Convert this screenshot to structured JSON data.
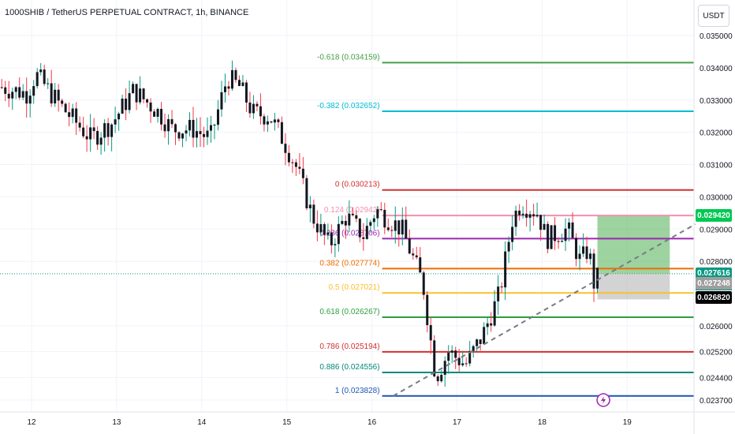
{
  "header": {
    "title": "1000SHIB / TetherUS PERPETUAL CONTRACT, 1h, BINANCE",
    "currency": "USDT"
  },
  "colors": {
    "up": "#089981",
    "down": "#f23645",
    "candle_body": "#131722",
    "grid": "#f0f3fa",
    "long_target": "#4caf50",
    "long_stop": "#9e9e9e"
  },
  "chart_data": {
    "type": "candlestick",
    "symbol": "1000SHIB / TetherUS PERPETUAL CONTRACT",
    "interval": "1h",
    "exchange": "BINANCE",
    "y_ticks": [
      "0.035000",
      "0.034000",
      "0.033000",
      "0.032000",
      "0.031000",
      "0.030000",
      "0.029000",
      "0.028000",
      "0.026000",
      "0.025200",
      "0.024400",
      "0.023700"
    ],
    "x_ticks": [
      "12",
      "13",
      "14",
      "15",
      "16",
      "17",
      "18",
      "19"
    ],
    "ylim": [
      0.0232,
      0.0355
    ],
    "fibonacci": [
      {
        "label": "-0.618 (0.034159)",
        "level": -0.618,
        "price": 0.034159,
        "color": "#43a047"
      },
      {
        "label": "-0.382 (0.032652)",
        "level": -0.382,
        "price": 0.032652,
        "color": "#00bcd4"
      },
      {
        "label": "0 (0.030213)",
        "level": 0,
        "price": 0.030213,
        "color": "#d32f2f"
      },
      {
        "label": "0.124 (0.02942)",
        "level": 0.124,
        "price": 0.02942,
        "color": "#f48fb1"
      },
      {
        "label": "0.236 (0.028706)",
        "level": 0.236,
        "price": 0.028706,
        "color": "#9c27b0"
      },
      {
        "label": "0.382 (0.027774)",
        "level": 0.382,
        "price": 0.027774,
        "color": "#ef6c00"
      },
      {
        "label": "0.5 (0.027021)",
        "level": 0.5,
        "price": 0.027021,
        "color": "#fbc02d"
      },
      {
        "label": "0.618 (0.026267)",
        "level": 0.618,
        "price": 0.026267,
        "color": "#2e9e3e"
      },
      {
        "label": "0.786 (0.025194)",
        "level": 0.786,
        "price": 0.025194,
        "color": "#d32f2f"
      },
      {
        "label": "0.886 (0.024556)",
        "level": 0.886,
        "price": 0.024556,
        "color": "#00897b"
      },
      {
        "label": "1 (0.023828)",
        "level": 1,
        "price": 0.023828,
        "color": "#1e55b3"
      }
    ],
    "price_labels": [
      {
        "text": "0.029420",
        "bg": "#00c853",
        "price": 0.02942
      },
      {
        "text": "0.027616",
        "bg": "#089981",
        "price": 0.027616,
        "timer": "41:06"
      },
      {
        "text": "0.027248",
        "bg": "#9e9e9e",
        "price": 0.027248
      },
      {
        "text": "0.026820",
        "bg": "#000000",
        "price": 0.02682
      }
    ],
    "position": {
      "entry": 0.027616,
      "target": 0.02942,
      "stop": 0.02682,
      "start_day": 18.65,
      "end_day": 19.5
    },
    "trendline": {
      "x1": 16.25,
      "y1": 0.023828,
      "x2": 19.8,
      "y2": 0.02915
    },
    "anchors": [
      {
        "d": 11.65,
        "p": 0.0334
      },
      {
        "d": 11.95,
        "p": 0.0332
      },
      {
        "d": 12.05,
        "p": 0.0338
      },
      {
        "d": 12.35,
        "p": 0.0328
      },
      {
        "d": 12.7,
        "p": 0.0318
      },
      {
        "d": 12.95,
        "p": 0.0323
      },
      {
        "d": 13.2,
        "p": 0.0333
      },
      {
        "d": 13.5,
        "p": 0.0326
      },
      {
        "d": 13.65,
        "p": 0.0321
      },
      {
        "d": 13.9,
        "p": 0.0321
      },
      {
        "d": 14.1,
        "p": 0.0318
      },
      {
        "d": 14.3,
        "p": 0.0337
      },
      {
        "d": 14.45,
        "p": 0.0334
      },
      {
        "d": 14.6,
        "p": 0.0326
      },
      {
        "d": 14.8,
        "p": 0.0325
      },
      {
        "d": 14.95,
        "p": 0.0318
      },
      {
        "d": 15.1,
        "p": 0.031
      },
      {
        "d": 15.3,
        "p": 0.0294
      },
      {
        "d": 15.5,
        "p": 0.0285
      },
      {
        "d": 15.7,
        "p": 0.0294
      },
      {
        "d": 15.9,
        "p": 0.0288
      },
      {
        "d": 16.05,
        "p": 0.0296
      },
      {
        "d": 16.35,
        "p": 0.029
      },
      {
        "d": 16.6,
        "p": 0.0273
      },
      {
        "d": 16.75,
        "p": 0.0244
      },
      {
        "d": 16.9,
        "p": 0.0252
      },
      {
        "d": 17.1,
        "p": 0.0248
      },
      {
        "d": 17.3,
        "p": 0.0257
      },
      {
        "d": 17.5,
        "p": 0.027
      },
      {
        "d": 17.65,
        "p": 0.0293
      },
      {
        "d": 17.75,
        "p": 0.0298
      },
      {
        "d": 17.95,
        "p": 0.0295
      },
      {
        "d": 18.05,
        "p": 0.0287
      },
      {
        "d": 18.3,
        "p": 0.029
      },
      {
        "d": 18.45,
        "p": 0.028
      },
      {
        "d": 18.55,
        "p": 0.0284
      },
      {
        "d": 18.6,
        "p": 0.0273
      },
      {
        "d": 18.68,
        "p": 0.0276
      }
    ]
  }
}
